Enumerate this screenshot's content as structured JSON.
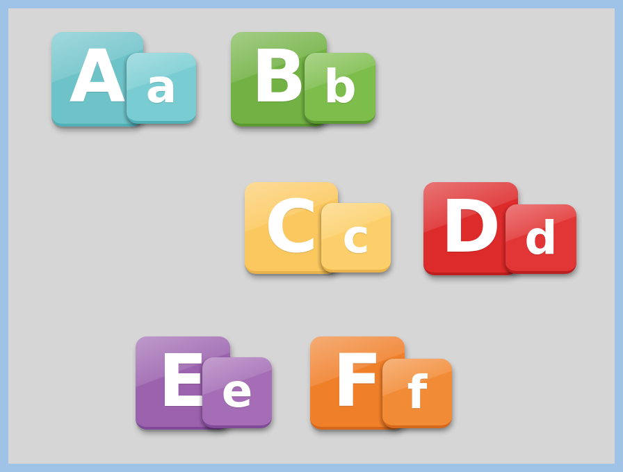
{
  "colors": {
    "frame_border": "#9fc3e6",
    "background": "#d6d6d6"
  },
  "tiles": [
    {
      "id": "a",
      "upper": "A",
      "lower": "a",
      "color_big": "#6ec3c9",
      "color_small": "#79cdd2",
      "edge": "#4fb0b8"
    },
    {
      "id": "b",
      "upper": "B",
      "lower": "b",
      "color_big": "#72b244",
      "color_small": "#7dbd4c",
      "edge": "#5a9a31"
    },
    {
      "id": "c",
      "upper": "C",
      "lower": "c",
      "color_big": "#fbc85f",
      "color_small": "#fccf6a",
      "edge": "#e9b24a"
    },
    {
      "id": "d",
      "upper": "D",
      "lower": "d",
      "color_big": "#dd2a2a",
      "color_small": "#e23535",
      "edge": "#bd1f1f"
    },
    {
      "id": "e",
      "upper": "E",
      "lower": "e",
      "color_big": "#9b63ae",
      "color_small": "#a46db5",
      "edge": "#80499a"
    },
    {
      "id": "f",
      "upper": "F",
      "lower": "f",
      "color_big": "#f07f2a",
      "color_small": "#f28b36",
      "edge": "#d5681a"
    }
  ]
}
